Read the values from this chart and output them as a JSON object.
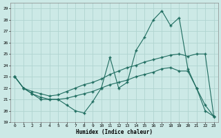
{
  "xlabel": "Humidex (Indice chaleur)",
  "xlim": [
    -0.5,
    23.5
  ],
  "ylim": [
    19,
    29.5
  ],
  "yticks": [
    19,
    20,
    21,
    22,
    23,
    24,
    25,
    26,
    27,
    28,
    29
  ],
  "xticks": [
    0,
    1,
    2,
    3,
    4,
    5,
    6,
    7,
    8,
    9,
    10,
    11,
    12,
    13,
    14,
    15,
    16,
    17,
    18,
    19,
    20,
    21,
    22,
    23
  ],
  "bg_color": "#cce9e6",
  "line_color": "#1d6b5e",
  "grid_color": "#b0d4d0",
  "line1_x": [
    0,
    1,
    2,
    3,
    4,
    5,
    6,
    7,
    8,
    9,
    10,
    11,
    12,
    13,
    14,
    15,
    16,
    17,
    18,
    19,
    20,
    21,
    22,
    23
  ],
  "line1_y": [
    23.0,
    22.0,
    21.5,
    21.0,
    21.0,
    21.0,
    20.5,
    20.0,
    19.8,
    20.8,
    22.0,
    24.7,
    22.0,
    22.5,
    25.3,
    26.5,
    28.0,
    28.8,
    27.5,
    28.2,
    23.7,
    22.0,
    20.5,
    19.5
  ],
  "line2_x": [
    0,
    1,
    2,
    3,
    4,
    5,
    6,
    7,
    8,
    9,
    10,
    11,
    12,
    13,
    14,
    15,
    16,
    17,
    18,
    19,
    20,
    21,
    22,
    23
  ],
  "line2_y": [
    23.0,
    22.0,
    21.7,
    21.5,
    21.3,
    21.4,
    21.7,
    22.0,
    22.3,
    22.5,
    22.8,
    23.2,
    23.5,
    23.8,
    24.0,
    24.3,
    24.5,
    24.7,
    24.9,
    25.0,
    24.8,
    25.0,
    25.0,
    19.5
  ],
  "line3_x": [
    0,
    1,
    2,
    3,
    4,
    5,
    6,
    7,
    8,
    9,
    10,
    11,
    12,
    13,
    14,
    15,
    16,
    17,
    18,
    19,
    20,
    21,
    22,
    23
  ],
  "line3_y": [
    23.0,
    22.0,
    21.5,
    21.2,
    21.0,
    21.0,
    21.1,
    21.3,
    21.5,
    21.7,
    22.0,
    22.3,
    22.5,
    22.7,
    23.0,
    23.2,
    23.4,
    23.7,
    23.8,
    23.5,
    23.5,
    22.0,
    20.0,
    19.5
  ]
}
